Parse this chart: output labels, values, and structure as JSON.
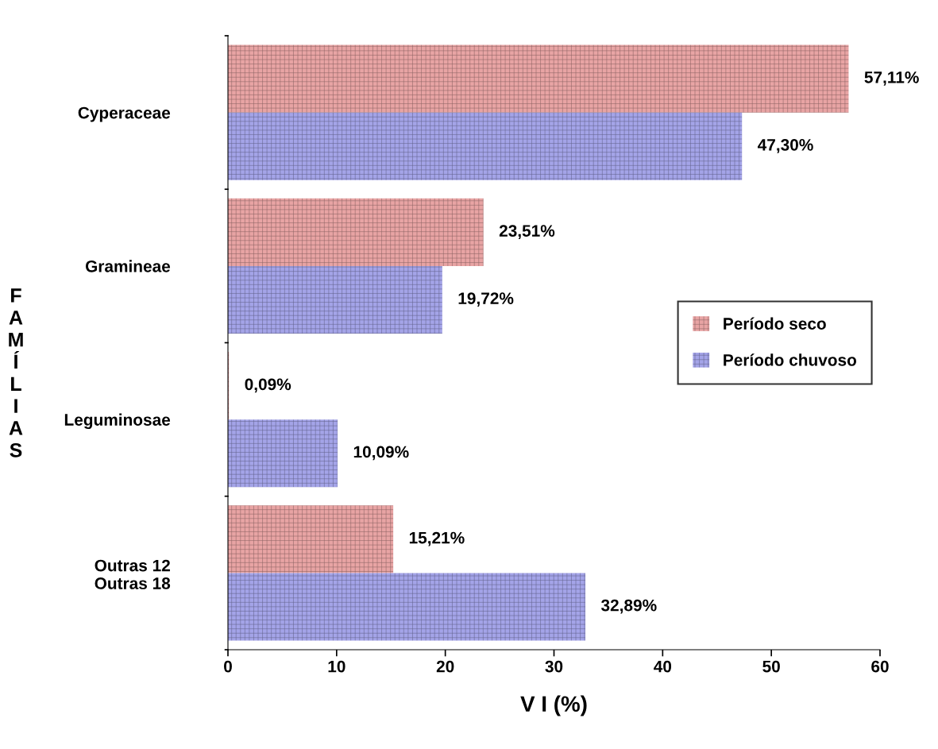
{
  "chart_data": {
    "type": "bar",
    "orientation": "horizontal",
    "xlabel": "V I (%)",
    "ylabel": "FAMÍLIAS",
    "categories": [
      "Cyperaceae",
      "Gramineae",
      "Leguminosae",
      "Outras 12\n   Outras 18"
    ],
    "series": [
      {
        "name": "Período seco",
        "color": "#e8a4a4",
        "values": [
          57.11,
          23.51,
          0.09,
          15.21
        ],
        "value_labels": [
          "57,11%",
          "23,51%",
          "0,09%",
          "15,21%"
        ]
      },
      {
        "name": "Período chuvoso",
        "color": "#a4a4e8",
        "values": [
          47.3,
          19.72,
          10.09,
          32.89
        ],
        "value_labels": [
          "47,30%",
          "19,72%",
          "10,09%",
          "32,89%"
        ]
      }
    ],
    "xlim": [
      0,
      60
    ],
    "xticks": [
      0,
      10,
      20,
      30,
      40,
      50,
      60
    ],
    "grid": false,
    "legend": "right"
  }
}
